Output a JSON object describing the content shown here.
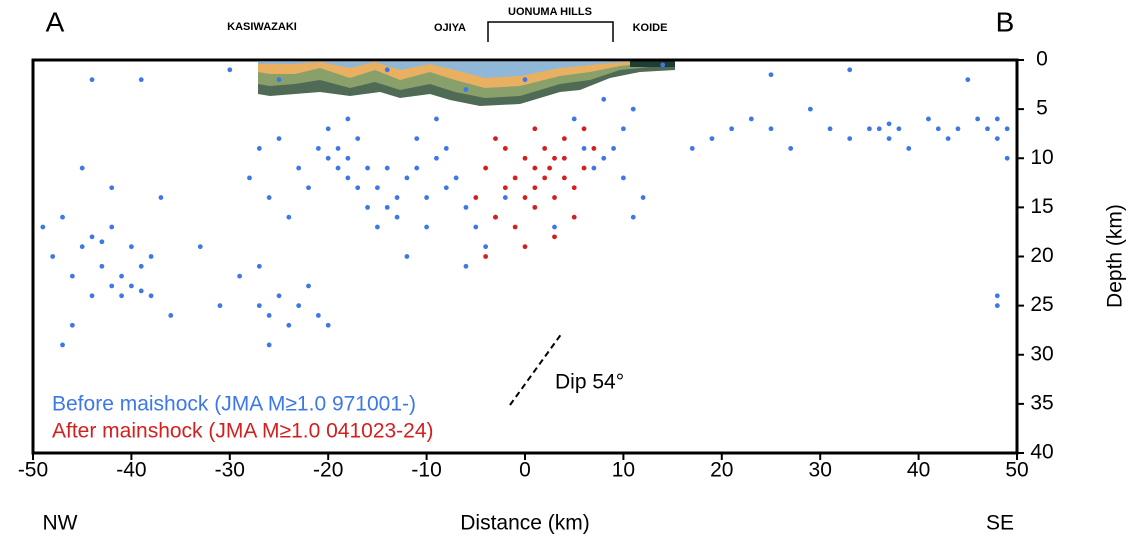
{
  "chart_data": {
    "type": "scatter",
    "corner_labels": {
      "top_left": "A",
      "top_right": "B",
      "bottom_left": "NW",
      "bottom_right": "SE"
    },
    "place_labels": [
      "KASIWAZAKI",
      "OJIYA",
      "UONUMA HILLS",
      "KOIDE"
    ],
    "annotation": "Dip 54°",
    "x_label": "Distance (km)",
    "y_label": "Depth (km)",
    "y_inverted": true,
    "y_axis_side": "right",
    "xlim": [
      -50,
      50
    ],
    "xticks": [
      -50,
      -40,
      -30,
      -20,
      -10,
      0,
      10,
      20,
      30,
      40,
      50
    ],
    "ylim": [
      0,
      40
    ],
    "yticks": [
      0,
      5,
      10,
      15,
      20,
      25,
      30,
      35,
      40
    ],
    "series": [
      {
        "name": "Before maishock (JMA M≥1.0 971001-)",
        "color": "#3d78e8",
        "x": [
          -49,
          -48,
          -47,
          -46,
          -46,
          -45,
          -44,
          -44,
          -43,
          -43,
          -42,
          -42,
          -41,
          -41,
          -40,
          -40,
          -39,
          -39,
          -38,
          -38,
          -47,
          -45,
          -42,
          -37,
          -36,
          -44,
          -39,
          -33,
          -31,
          -29,
          -27,
          -26,
          -25,
          -24,
          -23,
          -22,
          -21,
          -27,
          -20,
          -26,
          -28,
          -27,
          -26,
          -25,
          -24,
          -23,
          -22,
          -21,
          -20,
          -19,
          -19,
          -18,
          -18,
          -17,
          -17,
          -16,
          -16,
          -15,
          -20,
          -18,
          -14,
          -13,
          -13,
          -12,
          -11,
          -10,
          -9,
          -8,
          -8,
          -7,
          -6,
          -5,
          -6,
          -4,
          -10,
          -11,
          -12,
          -9,
          -14,
          -15,
          5,
          6,
          7,
          8,
          9,
          10,
          10,
          11,
          12,
          11,
          -30,
          -25,
          -14,
          -6,
          0,
          8,
          14,
          25,
          33,
          45,
          17,
          19,
          21,
          23,
          25,
          27,
          29,
          31,
          33,
          35,
          36,
          37,
          37,
          38,
          39,
          41,
          42,
          43,
          44,
          46,
          47,
          48,
          48,
          49,
          49,
          48,
          48,
          -3,
          -2,
          3
        ],
        "y": [
          17,
          20,
          16,
          22,
          27,
          19,
          18,
          24,
          18.5,
          21,
          17,
          23,
          22,
          24,
          23,
          19,
          23.5,
          21,
          24,
          20,
          29,
          11,
          13,
          14,
          26,
          2,
          2,
          19,
          25,
          22,
          25,
          26,
          24,
          27,
          25,
          23,
          26,
          21,
          27,
          29,
          12,
          9,
          14,
          8,
          16,
          11,
          13,
          9,
          10,
          11,
          9,
          10,
          12,
          13,
          8,
          15,
          11,
          17,
          7,
          6,
          15,
          14,
          16,
          12,
          11,
          14,
          10,
          9,
          13,
          12,
          15,
          17,
          21,
          19,
          17,
          8,
          20,
          6,
          11,
          13,
          6,
          9,
          11,
          10,
          9,
          7,
          12,
          5,
          14,
          16,
          1,
          2,
          1,
          3,
          2,
          4,
          0.5,
          1.5,
          1,
          2,
          9,
          8,
          7,
          6,
          7,
          9,
          5,
          7,
          8,
          7,
          7,
          6.5,
          8,
          7,
          9,
          6,
          7,
          8,
          7,
          6,
          7,
          8,
          6,
          7,
          10,
          24,
          25,
          16,
          14,
          17
        ]
      },
      {
        "name": "After mainshock (JMA M≥1.0 041023-24)",
        "color": "#d41f1f",
        "x": [
          -5,
          -4,
          -3,
          -2,
          -1,
          0,
          0,
          1,
          1,
          2,
          2,
          2.5,
          3,
          3,
          4,
          4,
          5,
          6,
          7,
          -1,
          0,
          1,
          -3,
          5,
          3,
          -4,
          6,
          1,
          -2,
          4
        ],
        "y": [
          14,
          11,
          16,
          9,
          12,
          10,
          14,
          11,
          13,
          9,
          12,
          11,
          10,
          14,
          8,
          12,
          13,
          11,
          9,
          17,
          19,
          7,
          8,
          16,
          18,
          20,
          7,
          15,
          13,
          10
        ]
      }
    ]
  }
}
